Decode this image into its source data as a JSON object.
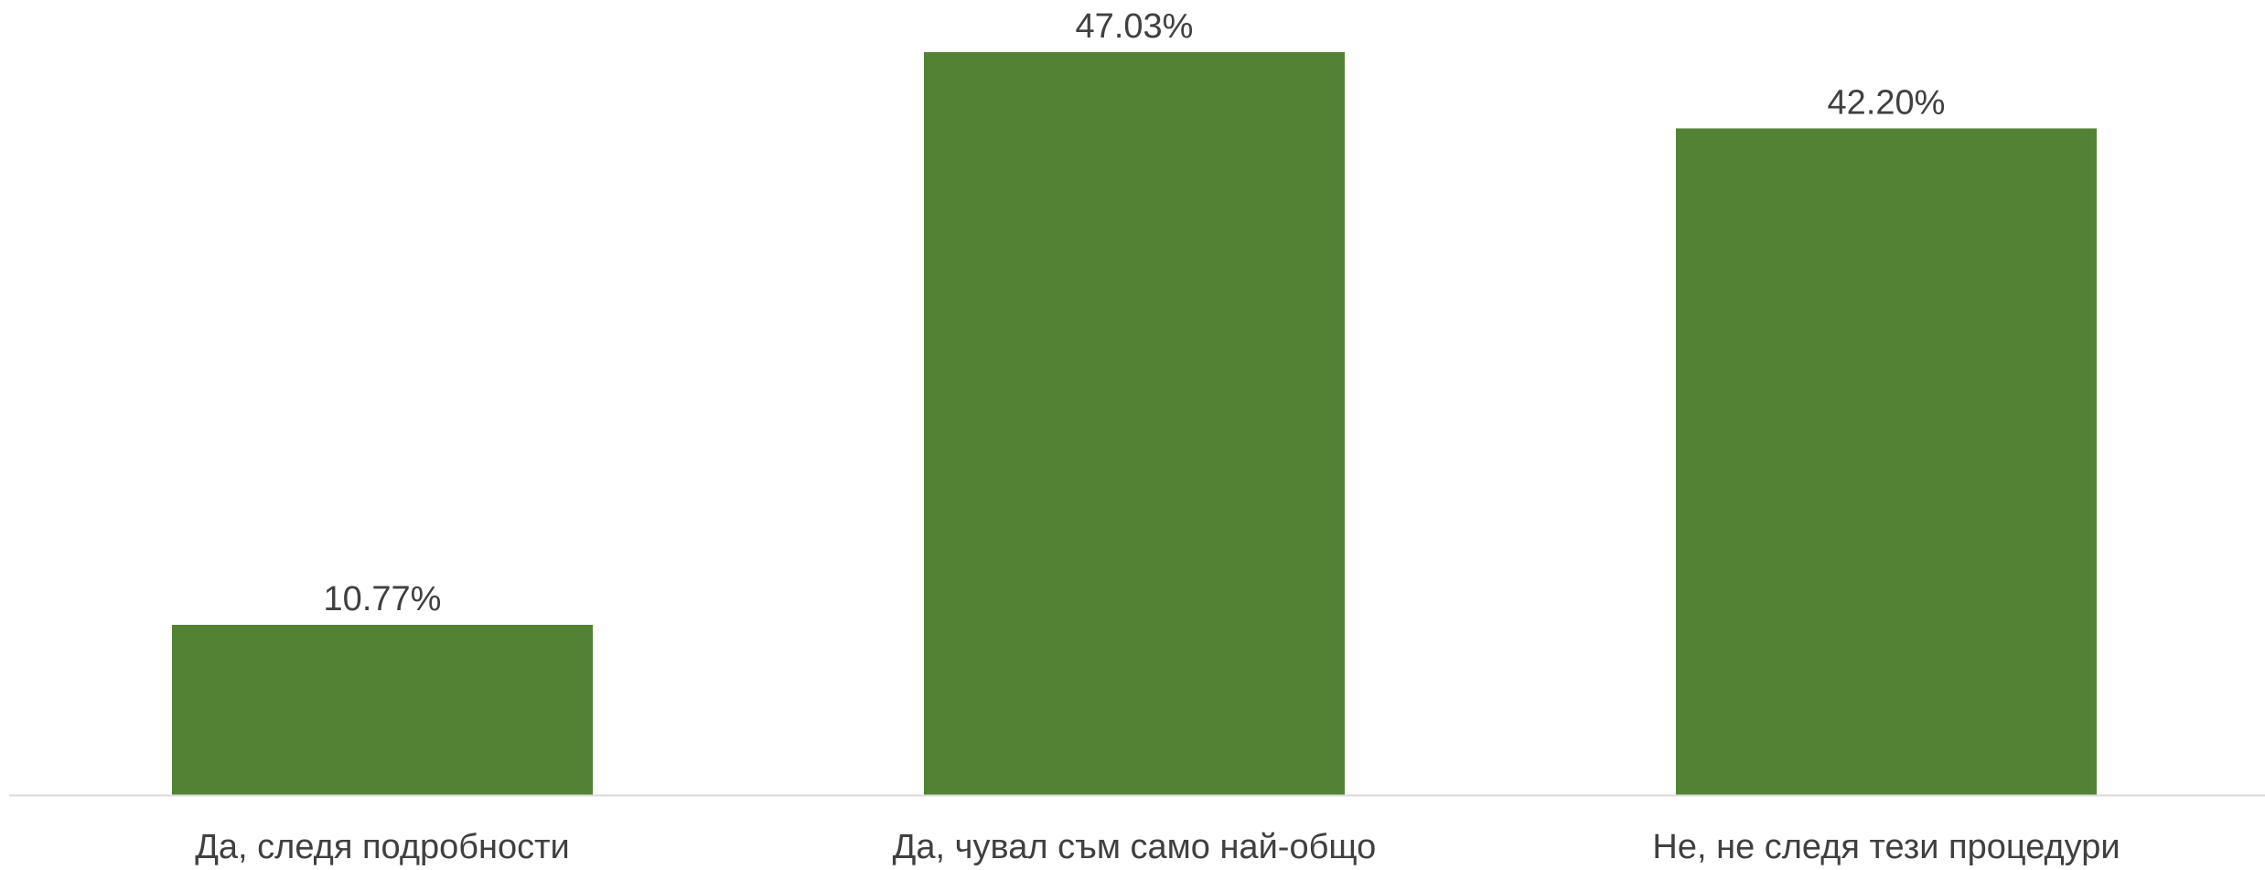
{
  "chart_data": {
    "type": "bar",
    "categories": [
      "Да, следя подробности",
      "Да, чувал съм само най-общо",
      "Не, не следя тези процедури"
    ],
    "values": [
      10.77,
      47.03,
      42.2
    ],
    "value_labels": [
      "10.77%",
      "47.03%",
      "42.20%"
    ],
    "unit": "%",
    "title": "",
    "xlabel": "",
    "ylabel": "",
    "ylim": [
      0,
      47.03
    ],
    "grid": false,
    "legend": "none",
    "bar_color": "#548235",
    "axis_color": "#d9d9d9",
    "text_color": "#404040"
  }
}
